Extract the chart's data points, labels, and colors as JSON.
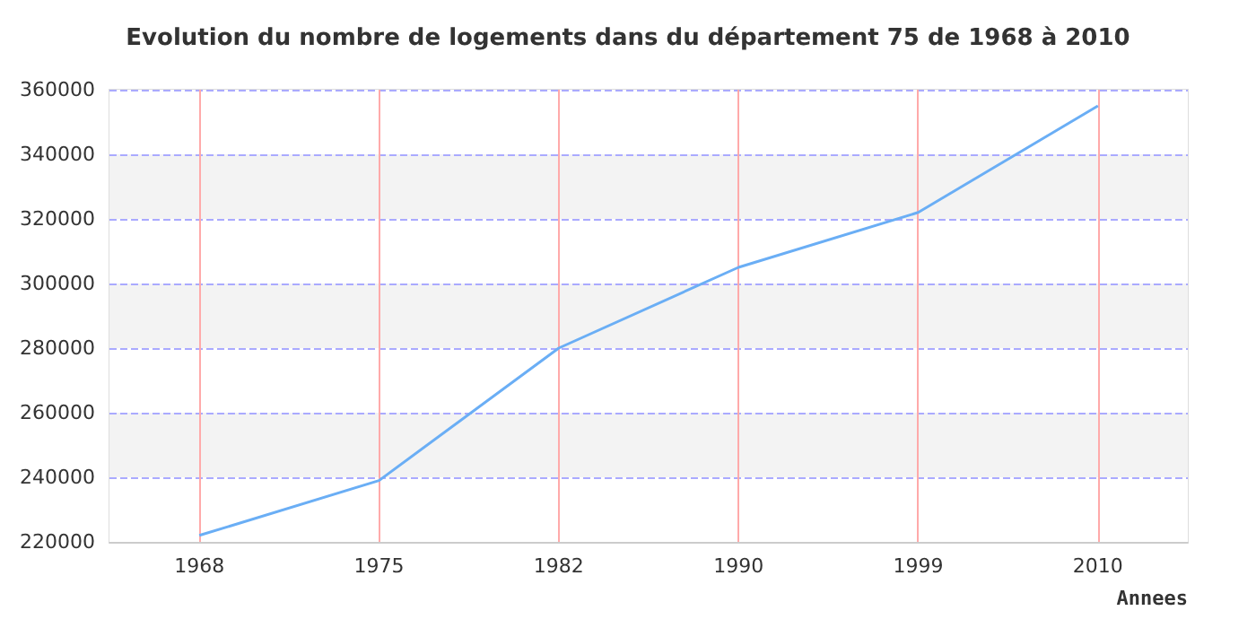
{
  "chart_data": {
    "type": "line",
    "title": "Evolution du nombre de logements dans du département 75 de 1968 à 2010",
    "xlabel": "Annees",
    "categories": [
      "1968",
      "1975",
      "1982",
      "1990",
      "1999",
      "2010"
    ],
    "series": [
      {
        "color": "#6aaef5",
        "values": [
          222000,
          239000,
          280000,
          305000,
          322000,
          355000
        ]
      }
    ],
    "ylim": [
      220000,
      360000
    ],
    "yticks": [
      220000,
      240000,
      260000,
      280000,
      300000,
      320000,
      340000,
      360000
    ],
    "grid": true,
    "marker": "none",
    "line_style": "solid"
  }
}
